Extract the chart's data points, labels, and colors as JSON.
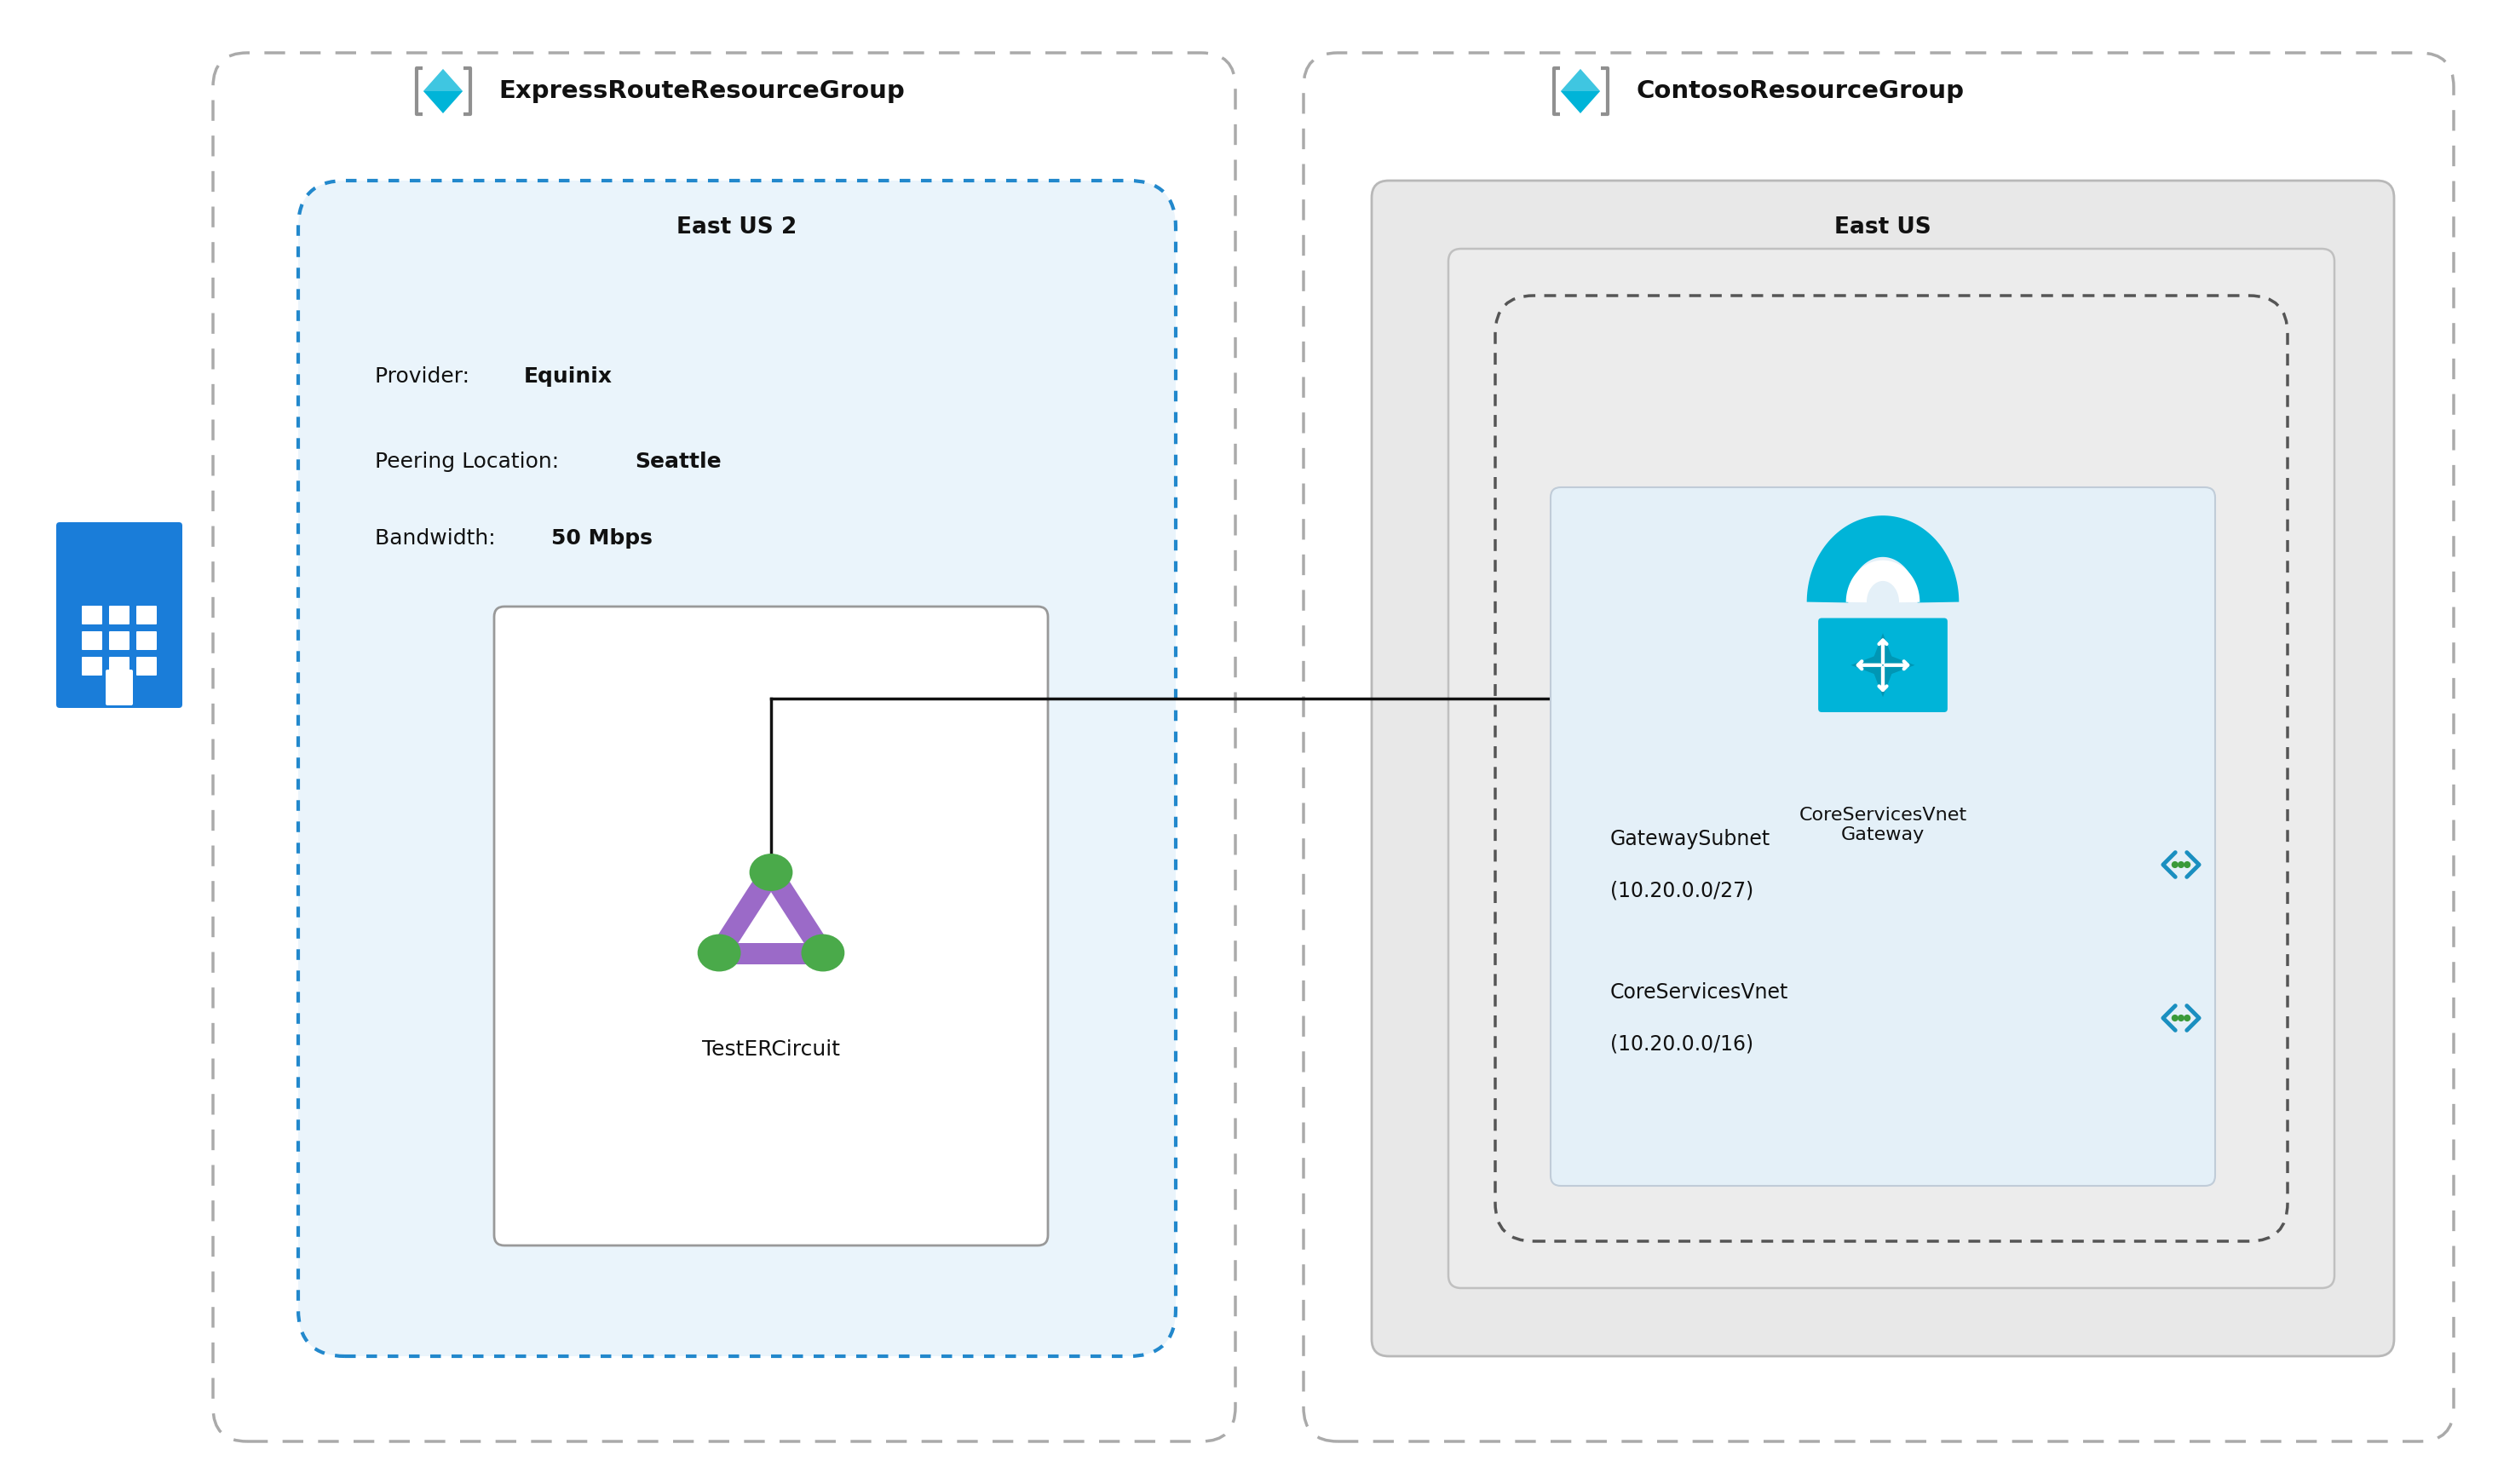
{
  "fig_width": 29.32,
  "fig_height": 17.42,
  "bg_color": "#ffffff",
  "title_left": "ExpressRouteResourceGroup",
  "title_right": "ContosoResourceGroup",
  "region_left": "East US 2",
  "region_right": "East US",
  "provider_label": "Provider: ",
  "provider_value": "Equinix",
  "peering_label": "Peering Location: ",
  "peering_value": "Seattle",
  "bandwidth_label": "Bandwidth: ",
  "bandwidth_value": "50 Mbps",
  "circuit_label": "TestERCircuit",
  "gateway_label": "CoreServicesVnet\nGateway",
  "subnet1_name": "GatewaySubnet",
  "subnet1_cidr": "(10.20.0.0/27)",
  "subnet2_name": "CoreServicesVnet",
  "subnet2_cidr": "(10.20.0.0/16)",
  "purple_color": "#9B6AC8",
  "green_node_color": "#4aaa4a",
  "cyan_color": "#00b4d8",
  "cyan_dark": "#0096b4",
  "building_color": "#1a7dd9",
  "azure_icon_cyan": "#00b4d8",
  "azure_icon_gray": "#909090",
  "text_color": "#111111",
  "inner_box_left_fill": "#eaf4fb",
  "inner_box_left_stroke": "#2288cc",
  "outer_box_stroke": "#aaaaaa",
  "right_outer_fill": "#e8e8e8",
  "right_outer_stroke": "#b8b8b8",
  "right_vnet_fill": "#ececec",
  "right_vnet_stroke": "#c0c0c0",
  "right_dashed_stroke": "#555555",
  "gateway_box_fill": "#e4f0f8",
  "gateway_box_stroke": "#c0ccd8",
  "circuit_box_stroke": "#999999",
  "subnet_icon_blue": "#1a8fc0",
  "subnet_icon_green": "#3a9a3a",
  "line_color": "#111111"
}
